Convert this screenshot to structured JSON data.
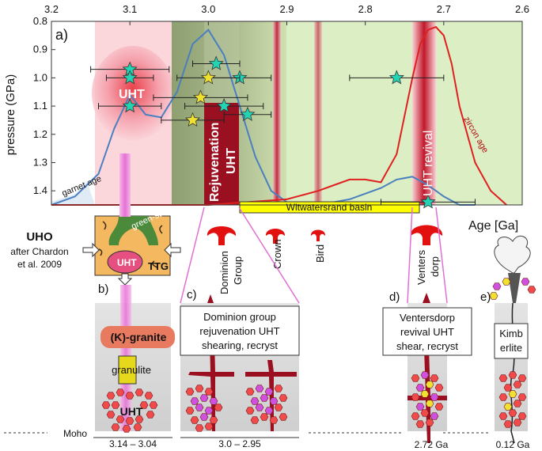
{
  "panel_a": {
    "label": "a)",
    "ylabel": "pressure (GPa)",
    "xlabel": "Age [Ga]",
    "x_ticks": [
      "3.2",
      "3.1",
      "3.0",
      "2.9",
      "2.8",
      "2.7",
      "2.6"
    ],
    "y_ticks": [
      "0.8",
      "0.9",
      "1.0",
      "1.1",
      "1.2",
      "1.3",
      "1.4"
    ],
    "uht_label": "UHT",
    "rejuvenation_label": "Rejuvenation UHT",
    "revival_label": "UHT revival",
    "garnet_label": "garnet age",
    "zircon_label": "zircon age",
    "basin_label": "Witwatersrand basin"
  },
  "chart_data": {
    "type": "scatter",
    "xlabel": "Age [Ga]",
    "ylabel": "pressure (GPa)",
    "xlim": [
      3.2,
      2.6
    ],
    "ylim": [
      1.45,
      0.8
    ],
    "x_ticks": [
      3.2,
      3.1,
      3.0,
      2.9,
      2.8,
      2.7,
      2.6
    ],
    "y_ticks": [
      0.8,
      0.9,
      1.0,
      1.1,
      1.2,
      1.3,
      1.4
    ],
    "series": [
      {
        "marker": "cyan-star",
        "color": "#22d3b4",
        "points": [
          {
            "x": 3.1,
            "y": 0.97,
            "xerr": 0.05
          },
          {
            "x": 3.1,
            "y": 1.0,
            "xerr": 0.03
          },
          {
            "x": 3.1,
            "y": 1.1,
            "xerr": 0.04
          },
          {
            "x": 2.99,
            "y": 0.95,
            "xerr": 0.03
          },
          {
            "x": 2.96,
            "y": 1.0,
            "xerr": 0.04
          },
          {
            "x": 2.98,
            "y": 1.1,
            "xerr": 0.05
          },
          {
            "x": 2.95,
            "y": 1.13,
            "xerr": 0.03
          },
          {
            "x": 2.76,
            "y": 1.0,
            "xerr": 0.06
          },
          {
            "x": 2.72,
            "y": 1.44,
            "xerr": 0.06
          }
        ]
      },
      {
        "marker": "yellow-star",
        "color": "#f0e030",
        "points": [
          {
            "x": 3.0,
            "y": 1.0,
            "xerr": 0.04
          },
          {
            "x": 3.01,
            "y": 1.07,
            "xerr": 0.06
          },
          {
            "x": 3.02,
            "y": 1.15,
            "xerr": 0.04
          }
        ]
      }
    ],
    "curves": [
      {
        "label": "garnet age",
        "color": "#4a7fc0",
        "x": [
          3.2,
          3.17,
          3.14,
          3.12,
          3.1,
          3.08,
          3.06,
          3.04,
          3.02,
          3.0,
          2.98,
          2.96,
          2.94,
          2.92,
          2.9,
          2.86,
          2.82,
          2.78,
          2.76,
          2.74,
          2.72,
          2.7,
          2.68,
          2.66
        ],
        "y": [
          1.45,
          1.42,
          1.34,
          1.18,
          1.06,
          1.13,
          1.14,
          1.05,
          0.88,
          0.83,
          0.92,
          1.1,
          1.28,
          1.4,
          1.44,
          1.45,
          1.43,
          1.39,
          1.36,
          1.35,
          1.38,
          1.42,
          1.45,
          1.45
        ]
      },
      {
        "label": "zircon age",
        "color": "#e02020",
        "x": [
          3.2,
          3.1,
          3.0,
          2.95,
          2.9,
          2.86,
          2.84,
          2.82,
          2.8,
          2.78,
          2.76,
          2.74,
          2.73,
          2.72,
          2.71,
          2.7,
          2.69,
          2.68,
          2.66,
          2.64,
          2.62
        ],
        "y": [
          1.45,
          1.45,
          1.45,
          1.44,
          1.43,
          1.4,
          1.38,
          1.36,
          1.36,
          1.37,
          1.27,
          1.0,
          0.88,
          0.83,
          0.82,
          0.85,
          0.95,
          1.1,
          1.3,
          1.4,
          1.45
        ]
      }
    ]
  },
  "uho": {
    "title": "UHO",
    "ref": "after Chardon et al. 2009",
    "green_stone": "green-stone",
    "uht": "UHT",
    "ttg": "TTG"
  },
  "events": {
    "dominion": "Dominion Group",
    "crown": "Crown",
    "bird": "Bird",
    "ventersdorp": "Venters dorp"
  },
  "panel_b": {
    "label": "b)",
    "granite": "(K)-granite",
    "granulite": "granulite",
    "uht": "UHT",
    "range": "3.14 – 3.04"
  },
  "panel_c": {
    "label": "c)",
    "box_line1": "Dominion group",
    "box_line2": "rejuvenation UHT",
    "box_line3": "shearing, recryst",
    "range": "3.0 – 2.95"
  },
  "panel_d": {
    "label": "d)",
    "box_line1": "Ventersdorp",
    "box_line2": "revival UHT",
    "box_line3": "shear, recryst",
    "age": "2.72 Ga"
  },
  "panel_e": {
    "label": "e)",
    "box_line1": "Kimb",
    "box_line2": "erlite",
    "age": "0.12 Ga"
  },
  "moho": "Moho",
  "colors": {
    "uht_pink": "#f4a8b4",
    "green_band": "#d8ecc0",
    "dark_red": "#9b1020",
    "magma_red": "#e01010",
    "hex_red": "#f04a4a",
    "hex_magenta": "#d050e0",
    "basin_yellow": "#ffff00",
    "star_cyan": "#22d3b4",
    "star_yellow": "#f0e030"
  }
}
